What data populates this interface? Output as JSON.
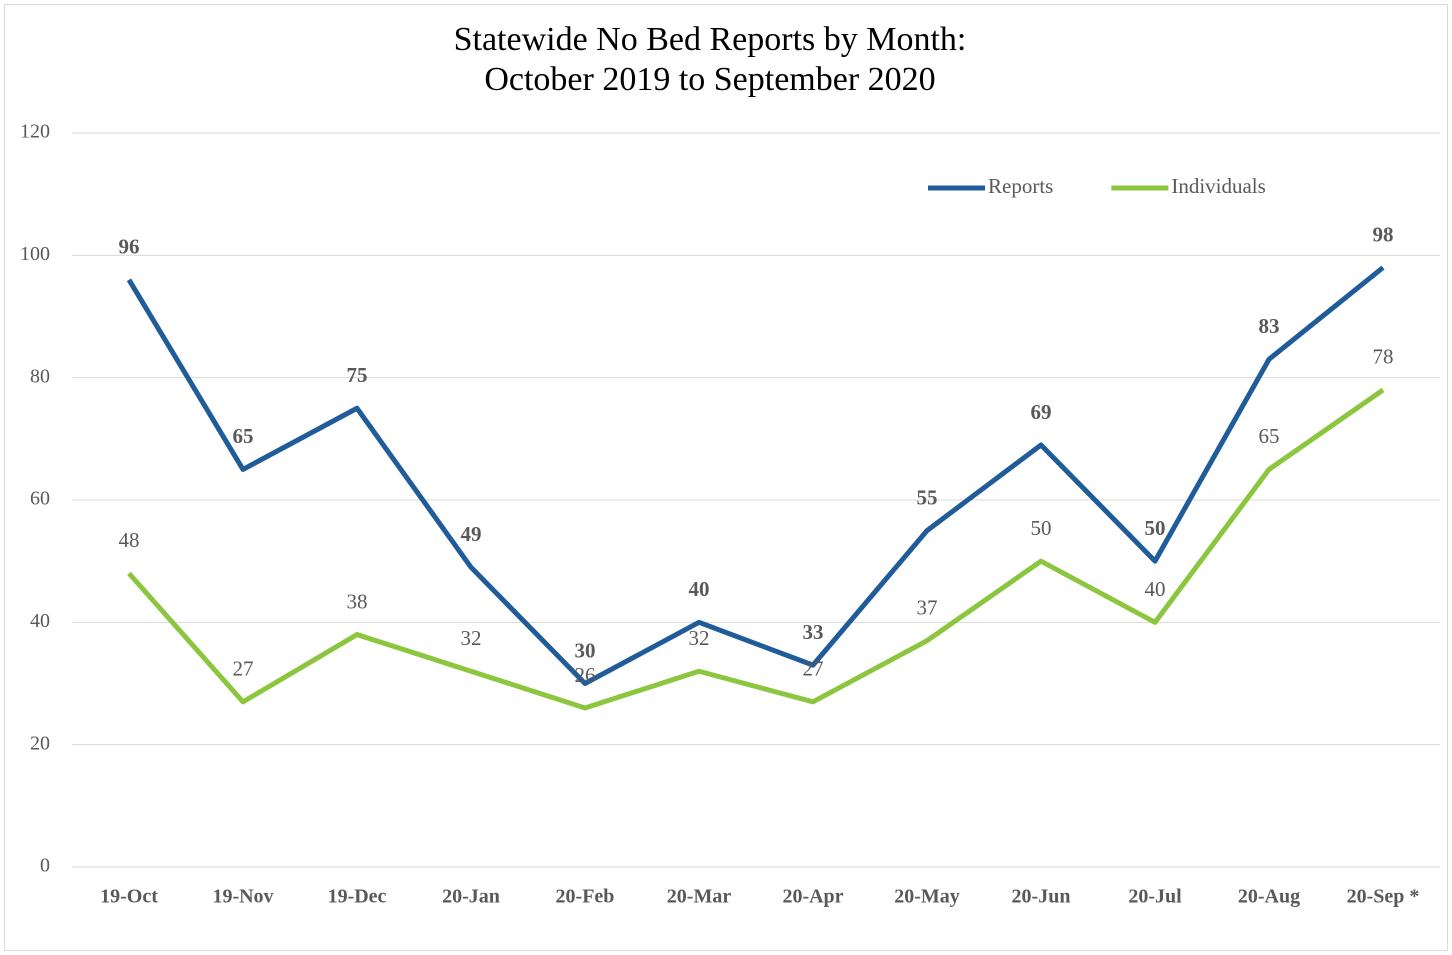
{
  "chart_data": {
    "type": "line",
    "title": [
      "Statewide No Bed Reports by Month:",
      "October 2019 to September 2020"
    ],
    "categories": [
      "19-Oct",
      "19-Nov",
      "19-Dec",
      "20-Jan",
      "20-Feb",
      "20-Mar",
      "20-Apr",
      "20-May",
      "20-Jun",
      "20-Jul",
      "20-Aug",
      "20-Sep *"
    ],
    "series": [
      {
        "name": "Reports",
        "color": "#1f5c99",
        "values": [
          96,
          65,
          75,
          49,
          30,
          40,
          33,
          55,
          69,
          50,
          83,
          98
        ]
      },
      {
        "name": "Individuals",
        "color": "#8cc63f",
        "values": [
          48,
          27,
          38,
          32,
          26,
          32,
          27,
          37,
          50,
          40,
          65,
          78
        ]
      }
    ],
    "ylim": [
      0,
      120
    ],
    "yticks": [
      0,
      20,
      40,
      60,
      80,
      100,
      120
    ],
    "grid": true,
    "legend": "top-right"
  }
}
